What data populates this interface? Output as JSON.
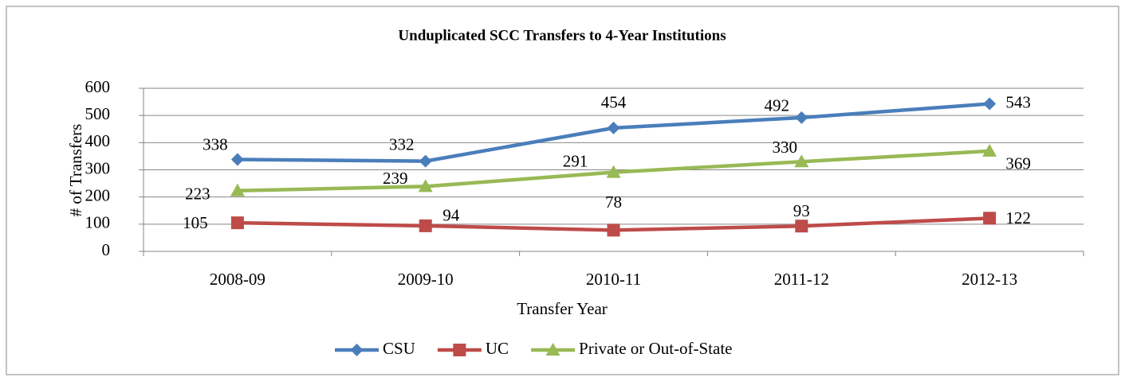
{
  "chart_data": {
    "type": "line",
    "title": "Unduplicated SCC Transfers to 4-Year Institutions",
    "x_label": "Transfer Year",
    "y_label": "# of Transfers",
    "categories": [
      "2008-09",
      "2009-10",
      "2010-11",
      "2011-12",
      "2012-13"
    ],
    "series": [
      {
        "name": "CSU",
        "color": "#4a7ebb",
        "marker": "diamond",
        "values": [
          338,
          332,
          454,
          492,
          543
        ]
      },
      {
        "name": "UC",
        "color": "#be4b48",
        "marker": "square",
        "values": [
          105,
          94,
          78,
          93,
          122
        ]
      },
      {
        "name": "Private or Out-of-State",
        "color": "#98b954",
        "marker": "triangle",
        "values": [
          223,
          239,
          291,
          330,
          369
        ]
      }
    ],
    "ylim": [
      0,
      600
    ],
    "yticks": [
      0,
      100,
      200,
      300,
      400,
      500,
      600
    ],
    "grid": true,
    "legend": "bottom"
  }
}
